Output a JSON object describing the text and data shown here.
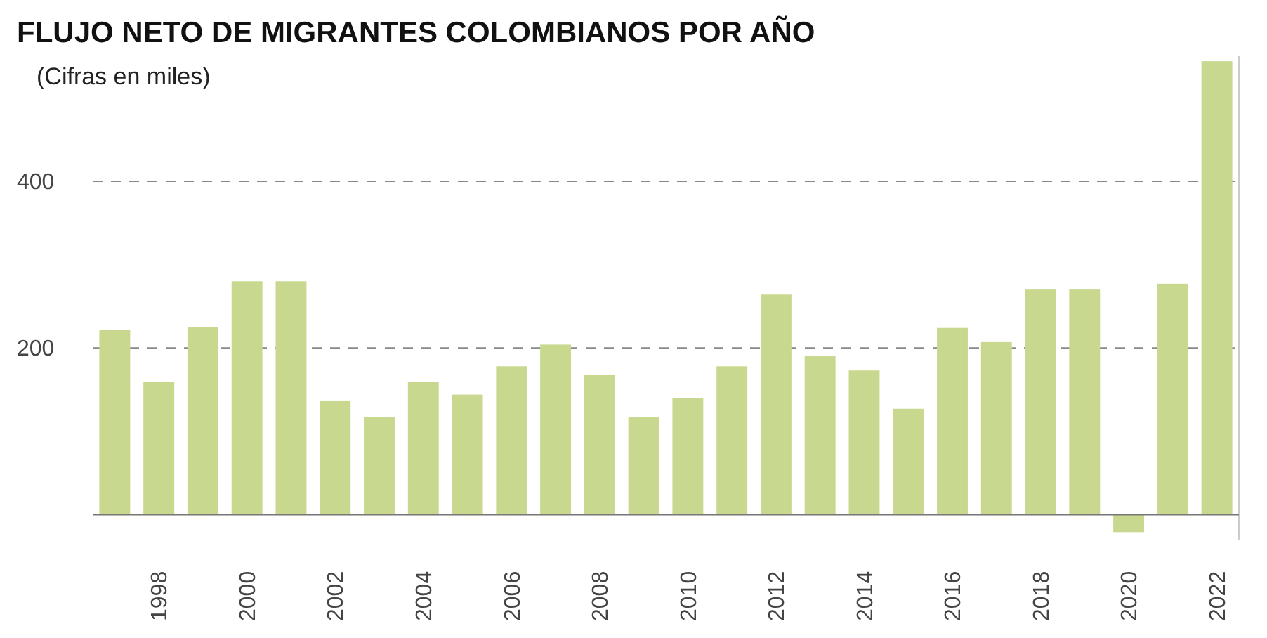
{
  "chart_data": {
    "type": "bar",
    "title": "FLUJO NETO DE MIGRANTES COLOMBIANOS POR AÑO",
    "subtitle": "(Cifras en miles)",
    "categories": [
      null,
      "1998",
      null,
      "2000",
      null,
      "2002",
      null,
      "2004",
      null,
      "2006",
      null,
      "2008",
      null,
      "2010",
      null,
      "2012",
      null,
      "2014",
      null,
      "2016",
      null,
      "2018",
      null,
      "2020",
      null,
      "2022"
    ],
    "values": [
      222,
      159,
      225,
      280,
      280,
      137,
      117,
      159,
      144,
      178,
      204,
      168,
      117,
      140,
      178,
      264,
      190,
      173,
      127,
      224,
      207,
      270,
      270,
      -21,
      277,
      544
    ],
    "color": "#c8d98f",
    "ylim": [
      -30,
      550
    ],
    "yticks": [
      200,
      400
    ],
    "grid": "y"
  }
}
